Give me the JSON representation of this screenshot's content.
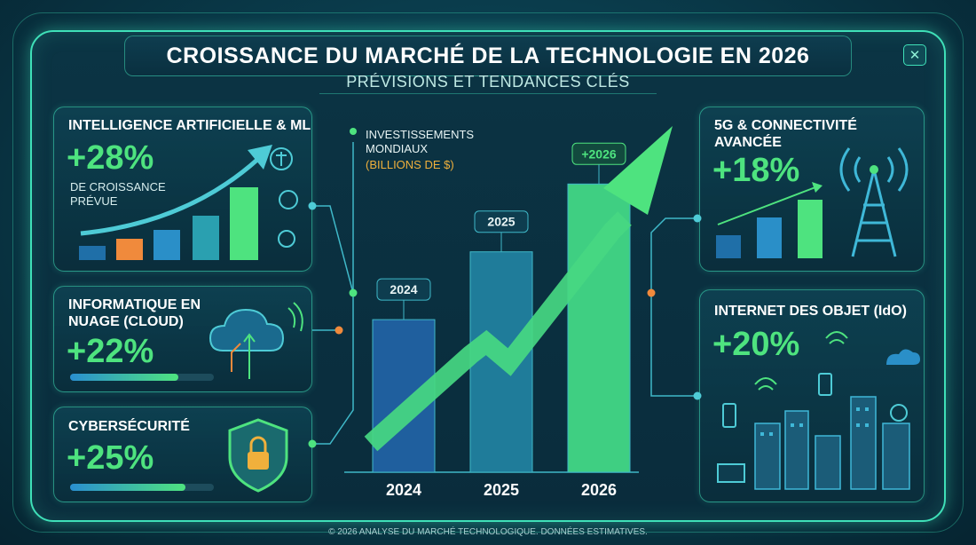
{
  "header": {
    "title": "CROISSANCE DU MARCHÉ DE LA TECHNOLOGIE EN 2026",
    "subtitle": "PRÉVISIONS ET TENDANCES CLÉS",
    "close_label": "✕"
  },
  "cards": {
    "ai": {
      "title": "INTELLIGENCE ARTIFICIELLE & ML",
      "pct": "+28%",
      "note1": "DE CROISSANCE",
      "note2": "PRÉVUE"
    },
    "cloud": {
      "title1": "INFORMATIQUE EN",
      "title2": "NUAGE (CLOUD)",
      "pct": "+22%",
      "progress": 0.75
    },
    "security": {
      "title": "CYBERSÉCURITÉ",
      "pct": "+25%",
      "progress": 0.8
    },
    "fiveg": {
      "title1": "5G & CONNECTIVITÉ",
      "title2": "AVANCÉE",
      "pct": "+18%"
    },
    "iot": {
      "title": "INTERNET DES OBJET (IdO)",
      "pct": "+20%"
    }
  },
  "chart_data": {
    "type": "bar",
    "title": "",
    "ylabel_line1": "INVESTISSEMENTS",
    "ylabel_line2": "MONDIAUX",
    "ylabel_line3": "(BILLIONS DE $)",
    "categories": [
      "2024",
      "2025",
      "2026"
    ],
    "bar_tags": [
      "2024",
      "2025",
      "+2026"
    ],
    "values": [
      180,
      260,
      340
    ],
    "ylim": [
      0,
      400
    ],
    "grid": false,
    "colors": [
      "#1f5f9e",
      "#1f7c9a",
      "#3fcf82"
    ]
  },
  "footer": {
    "text": "© 2026 ANALYSE DU MARCHÉ TECHNOLOGIQUE. DONNÉES ESTIMATIVES."
  }
}
